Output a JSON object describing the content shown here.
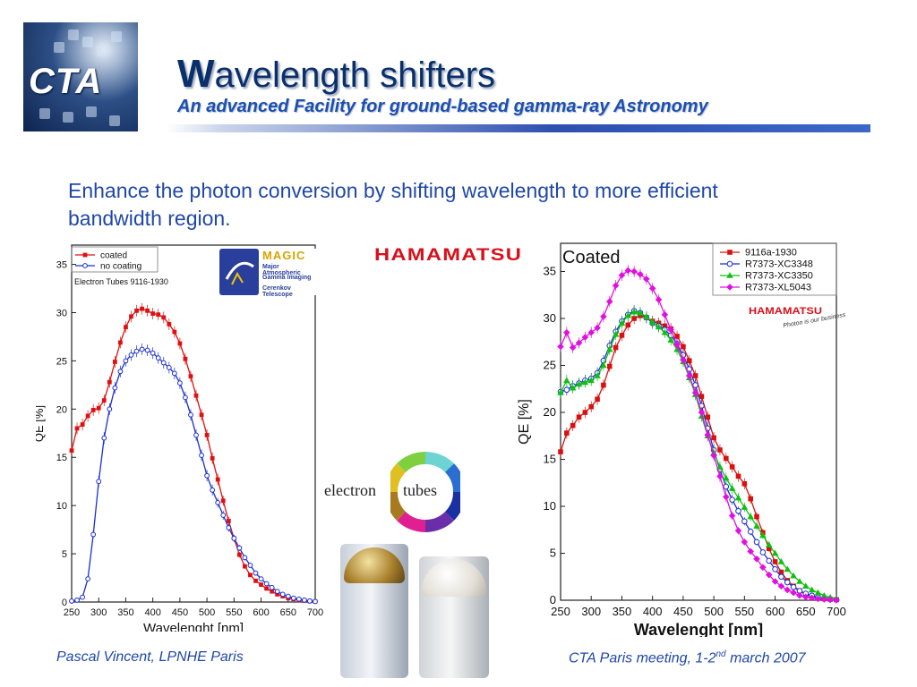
{
  "header": {
    "logo_text": "CTA",
    "title_initial": "W",
    "title_rest": "avelength shifters",
    "subtitle": "An advanced Facility for ground-based gamma-ray Astronomy"
  },
  "intro_text": "Enhance the photon conversion by shifting wavelength to more efficient bandwidth region.",
  "footer": {
    "left": "Pascal Vincent, LPNHE Paris",
    "right_prefix": "CTA Paris meeting, 1-2",
    "right_sup": "nd",
    "right_suffix": " march 2007"
  },
  "logos": {
    "hamamatsu_large": "HAMAMATSU",
    "hamamatsu_small": "HAMAMATSU",
    "hamamatsu_tagline": "Photon is our business",
    "magic_title": "MAGIC",
    "magic_lines": [
      "Major Atmospheric",
      "Gamma Imaging",
      "Cerenkov Telescope"
    ],
    "electron_tubes_a": "electron",
    "electron_tubes_b": "tubes"
  },
  "chart_data": [
    {
      "type": "line",
      "annotation": "Electron Tubes 9116-1930",
      "xlabel": "Wavelenght [nm]",
      "ylabel": "QE [%]",
      "xlim": [
        250,
        700
      ],
      "ylim": [
        0,
        37
      ],
      "xticks": [
        250,
        300,
        350,
        400,
        450,
        500,
        550,
        600,
        650,
        700
      ],
      "yticks": [
        0,
        5,
        10,
        15,
        20,
        25,
        30,
        35
      ],
      "legend": "top-left",
      "grid": false,
      "series": [
        {
          "name": "coated",
          "color": "#e01010",
          "marker": "square",
          "x": [
            250,
            260,
            270,
            280,
            290,
            300,
            310,
            320,
            330,
            340,
            350,
            360,
            370,
            380,
            390,
            400,
            410,
            420,
            430,
            440,
            450,
            460,
            470,
            480,
            490,
            500,
            510,
            520,
            530,
            540,
            550,
            560,
            570,
            580,
            590,
            600,
            610,
            620,
            630,
            640,
            650,
            660,
            670,
            680,
            690,
            700
          ],
          "y": [
            15.7,
            18.0,
            18.4,
            19.3,
            19.9,
            20.1,
            20.9,
            22.8,
            24.9,
            26.9,
            28.5,
            29.6,
            30.2,
            30.4,
            30.2,
            29.9,
            29.8,
            29.5,
            28.8,
            28.0,
            26.8,
            25.2,
            23.4,
            21.4,
            19.4,
            17.3,
            14.9,
            12.7,
            10.5,
            8.4,
            6.6,
            4.9,
            3.7,
            2.8,
            2.2,
            1.8,
            1.4,
            1.1,
            0.8,
            0.6,
            0.4,
            0.3,
            0.2,
            0.15,
            0.1,
            0.05
          ]
        },
        {
          "name": "no coating",
          "color": "#1a2fd0",
          "marker": "circle",
          "x": [
            250,
            260,
            270,
            280,
            290,
            300,
            310,
            320,
            330,
            340,
            350,
            360,
            370,
            380,
            390,
            400,
            410,
            420,
            430,
            440,
            450,
            460,
            470,
            480,
            490,
            500,
            510,
            520,
            530,
            540,
            550,
            560,
            570,
            580,
            590,
            600,
            610,
            620,
            630,
            640,
            650,
            660,
            670,
            680,
            690,
            700
          ],
          "y": [
            0.1,
            0.2,
            0.5,
            2.4,
            7.0,
            12.5,
            17.0,
            20.0,
            22.2,
            23.9,
            25.0,
            25.6,
            26.0,
            26.2,
            26.1,
            25.8,
            25.3,
            24.8,
            24.3,
            23.7,
            22.7,
            21.2,
            19.4,
            17.3,
            15.2,
            13.1,
            11.6,
            10.3,
            9.0,
            7.7,
            6.6,
            5.6,
            4.6,
            3.8,
            3.0,
            2.4,
            1.9,
            1.5,
            1.1,
            0.8,
            0.6,
            0.4,
            0.3,
            0.2,
            0.1,
            0.05
          ]
        }
      ]
    },
    {
      "type": "line",
      "title": "Coated",
      "xlabel": "Wavelenght [nm]",
      "ylabel": "QE [%]",
      "xlim": [
        250,
        700
      ],
      "ylim": [
        0,
        38
      ],
      "xticks": [
        250,
        300,
        350,
        400,
        450,
        500,
        550,
        600,
        650,
        700
      ],
      "yticks": [
        0,
        5,
        10,
        15,
        20,
        25,
        30,
        35
      ],
      "legend": "top-right",
      "grid": false,
      "series": [
        {
          "name": "9116a-1930",
          "color": "#d81010",
          "marker": "square",
          "x": [
            250,
            260,
            270,
            280,
            290,
            300,
            310,
            320,
            330,
            340,
            350,
            360,
            370,
            380,
            390,
            400,
            410,
            420,
            430,
            440,
            450,
            460,
            470,
            480,
            490,
            500,
            510,
            520,
            530,
            540,
            550,
            560,
            570,
            580,
            590,
            600,
            610,
            620,
            630,
            640,
            650,
            660,
            670,
            680,
            690,
            700
          ],
          "y": [
            15.8,
            17.8,
            18.6,
            19.5,
            20.0,
            20.6,
            21.4,
            22.9,
            24.9,
            26.9,
            28.2,
            29.3,
            30.0,
            30.3,
            30.1,
            29.7,
            29.5,
            29.2,
            28.9,
            28.1,
            27.0,
            25.5,
            23.9,
            21.7,
            19.5,
            17.3,
            16.0,
            15.1,
            14.2,
            13.2,
            12.4,
            10.8,
            8.9,
            7.2,
            5.5,
            4.1,
            3.0,
            2.1,
            1.5,
            1.0,
            0.6,
            0.4,
            0.25,
            0.15,
            0.1,
            0.05
          ]
        },
        {
          "name": "R7373-XC3348",
          "color": "#1a2fd0",
          "marker": "circle",
          "x": [
            250,
            260,
            270,
            280,
            290,
            300,
            310,
            320,
            330,
            340,
            350,
            360,
            370,
            380,
            390,
            400,
            410,
            420,
            430,
            440,
            450,
            460,
            470,
            480,
            490,
            500,
            510,
            520,
            530,
            540,
            550,
            560,
            570,
            580,
            590,
            600,
            610,
            620,
            630,
            640,
            650,
            660,
            670,
            680,
            690,
            700
          ],
          "y": [
            22.2,
            22.4,
            22.8,
            23.1,
            23.4,
            23.6,
            24.2,
            25.5,
            27.1,
            28.6,
            29.7,
            30.4,
            30.8,
            30.6,
            30.1,
            29.5,
            29.2,
            28.8,
            28.2,
            27.3,
            26.1,
            24.6,
            22.9,
            20.7,
            18.3,
            16.0,
            13.9,
            12.1,
            10.7,
            9.5,
            8.4,
            7.3,
            6.2,
            5.1,
            4.2,
            3.3,
            2.5,
            1.9,
            1.4,
            1.0,
            0.7,
            0.5,
            0.3,
            0.2,
            0.1,
            0.05
          ]
        },
        {
          "name": "R7373-XC3350",
          "color": "#10c010",
          "marker": "triangle",
          "x": [
            250,
            260,
            270,
            280,
            290,
            300,
            310,
            320,
            330,
            340,
            350,
            360,
            370,
            380,
            390,
            400,
            410,
            420,
            430,
            440,
            450,
            460,
            470,
            480,
            490,
            500,
            510,
            520,
            530,
            540,
            550,
            560,
            570,
            580,
            590,
            600,
            610,
            620,
            630,
            640,
            650,
            660,
            670,
            680,
            690,
            700
          ],
          "y": [
            22.1,
            23.4,
            22.6,
            23.0,
            23.2,
            23.4,
            23.9,
            25.0,
            26.7,
            28.3,
            29.5,
            30.3,
            30.7,
            30.6,
            30.2,
            29.6,
            29.1,
            28.5,
            27.7,
            26.7,
            25.4,
            23.7,
            21.9,
            19.6,
            17.5,
            15.7,
            14.2,
            13.0,
            11.9,
            10.9,
            9.9,
            8.9,
            7.9,
            6.9,
            5.9,
            5.0,
            4.1,
            3.3,
            2.6,
            2.0,
            1.5,
            1.1,
            0.8,
            0.5,
            0.3,
            0.2
          ]
        },
        {
          "name": "R7373-XL5043",
          "color": "#e010e0",
          "marker": "diamond",
          "x": [
            250,
            260,
            270,
            280,
            290,
            300,
            310,
            320,
            330,
            340,
            350,
            360,
            370,
            380,
            390,
            400,
            410,
            420,
            430,
            440,
            450,
            460,
            470,
            480,
            490,
            500,
            510,
            520,
            530,
            540,
            550,
            560,
            570,
            580,
            590,
            600,
            610,
            620,
            630,
            640,
            650,
            660,
            670,
            680,
            690,
            700
          ],
          "y": [
            27.0,
            28.5,
            26.9,
            27.4,
            28.0,
            28.5,
            29.0,
            30.2,
            31.8,
            33.5,
            34.6,
            35.1,
            35.0,
            34.7,
            34.2,
            33.2,
            32.0,
            30.4,
            28.8,
            27.2,
            25.6,
            23.9,
            22.1,
            20.0,
            17.6,
            15.4,
            13.2,
            11.0,
            9.0,
            7.4,
            6.2,
            5.2,
            4.4,
            3.5,
            2.7,
            2.0,
            1.5,
            1.1,
            0.8,
            0.5,
            0.35,
            0.25,
            0.15,
            0.1,
            0.05,
            0.02
          ]
        }
      ]
    }
  ]
}
